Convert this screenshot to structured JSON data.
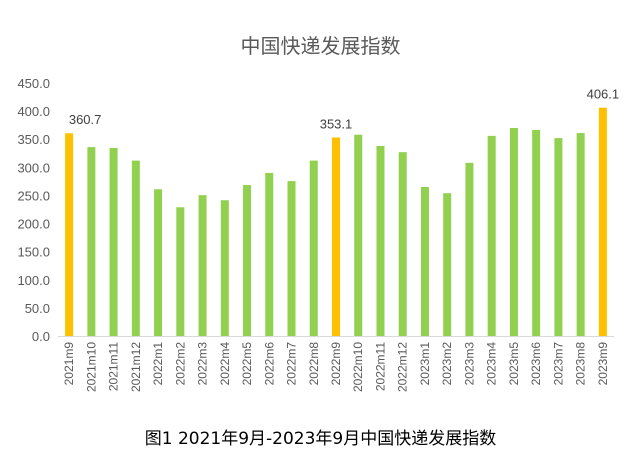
{
  "chart_data": {
    "type": "bar",
    "title": "中国快递发展指数",
    "caption": "图1 2021年9月-2023年9月中国快递发展指数",
    "xlabel": "",
    "ylabel": "",
    "ylim": [
      0,
      450
    ],
    "yticks": [
      "0.0",
      "50.0",
      "100.0",
      "150.0",
      "200.0",
      "250.0",
      "300.0",
      "350.0",
      "400.0",
      "450.0"
    ],
    "grid": false,
    "categories": [
      "2021m9",
      "2021m10",
      "2021m11",
      "2021m12",
      "2022m1",
      "2022m2",
      "2022m3",
      "2022m4",
      "2022m5",
      "2022m6",
      "2022m7",
      "2022m8",
      "2022m9",
      "2022m10",
      "2022m11",
      "2022m12",
      "2023m1",
      "2023m2",
      "2023m3",
      "2023m4",
      "2023m5",
      "2023m6",
      "2023m7",
      "2023m8",
      "2023m9"
    ],
    "values": [
      360.7,
      336,
      334.5,
      312,
      261,
      229,
      250.5,
      241.5,
      268.5,
      290,
      275.5,
      312,
      353.1,
      358,
      338,
      327,
      265,
      254,
      308,
      356,
      370,
      366.5,
      352,
      361,
      406.1
    ],
    "highlighted": [
      0,
      12,
      24
    ],
    "data_labels": {
      "0": "360.7",
      "12": "353.1",
      "24": "406.1"
    },
    "colors": {
      "normal": "#92d050",
      "highlight": "#ffc000"
    }
  }
}
